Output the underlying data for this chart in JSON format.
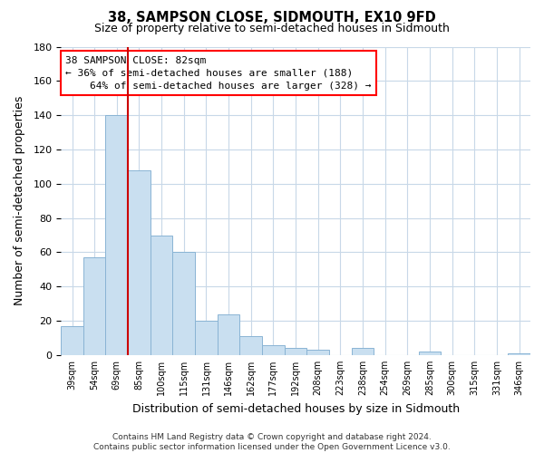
{
  "title": "38, SAMPSON CLOSE, SIDMOUTH, EX10 9FD",
  "subtitle": "Size of property relative to semi-detached houses in Sidmouth",
  "xlabel": "Distribution of semi-detached houses by size in Sidmouth",
  "ylabel": "Number of semi-detached properties",
  "bar_values": [
    17,
    57,
    140,
    108,
    70,
    60,
    20,
    24,
    11,
    6,
    4,
    3,
    0,
    4,
    0,
    0,
    2,
    0,
    0,
    0,
    1
  ],
  "categories": [
    "39sqm",
    "54sqm",
    "69sqm",
    "85sqm",
    "100sqm",
    "115sqm",
    "131sqm",
    "146sqm",
    "162sqm",
    "177sqm",
    "192sqm",
    "208sqm",
    "223sqm",
    "238sqm",
    "254sqm",
    "269sqm",
    "285sqm",
    "300sqm",
    "315sqm",
    "331sqm",
    "346sqm"
  ],
  "bar_color": "#c9dff0",
  "bar_edge_color": "#8ab4d4",
  "property_line_x": 3,
  "property_line_color": "#cc0000",
  "ylim": [
    0,
    180
  ],
  "yticks": [
    0,
    20,
    40,
    60,
    80,
    100,
    120,
    140,
    160,
    180
  ],
  "annotation_title": "38 SAMPSON CLOSE: 82sqm",
  "annotation_line1": "← 36% of semi-detached houses are smaller (188)",
  "annotation_line2": "    64% of semi-detached houses are larger (328) →",
  "footer_line1": "Contains HM Land Registry data © Crown copyright and database right 2024.",
  "footer_line2": "Contains public sector information licensed under the Open Government Licence v3.0.",
  "background_color": "#ffffff",
  "grid_color": "#c8d8e8"
}
